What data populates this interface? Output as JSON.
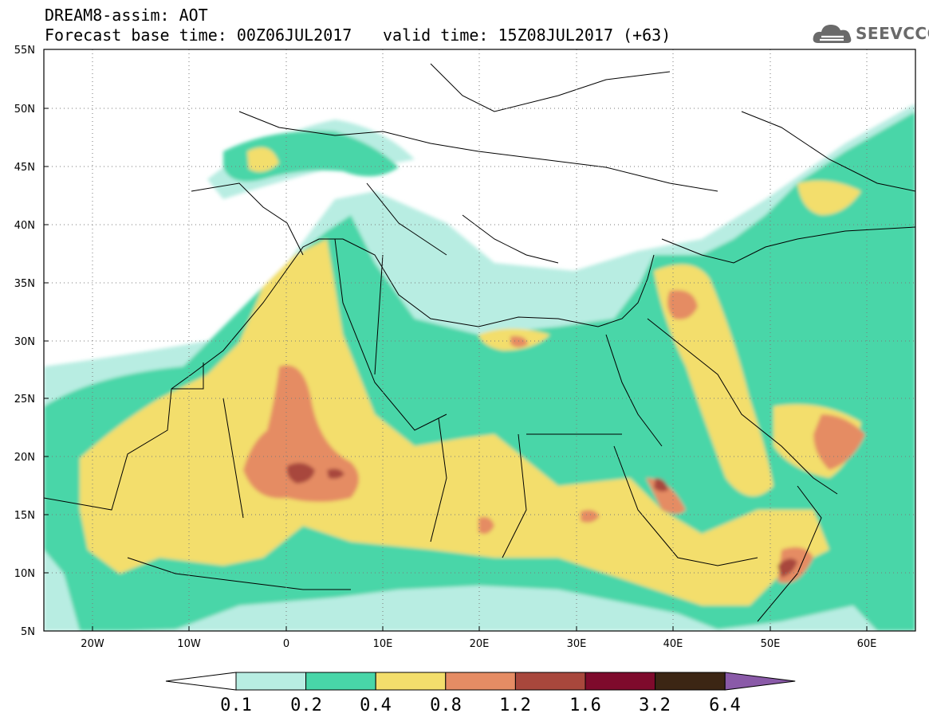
{
  "header": {
    "model_line": "DREAM8-assim: AOT",
    "base_time": "Forecast base time: 00Z06JUL2017",
    "valid_time": "valid time: 15Z08JUL2017 (+63)"
  },
  "logo": {
    "text": "SEEVCCC",
    "icon": "cloud-logo-icon",
    "color": "#6a6a6a"
  },
  "map": {
    "lat_labels": [
      "55N",
      "50N",
      "45N",
      "40N",
      "35N",
      "30N",
      "25N",
      "20N",
      "15N",
      "10N",
      "5N"
    ],
    "lon_labels": [
      "20W",
      "10W",
      "0",
      "10E",
      "20E",
      "30E",
      "40E",
      "50E",
      "60E"
    ],
    "lat_range": [
      5,
      55
    ],
    "lon_range": [
      -25,
      65
    ],
    "grid": "dotted"
  },
  "colorbar": {
    "labels": [
      "0.1",
      "0.2",
      "0.4",
      "0.8",
      "1.2",
      "1.6",
      "3.2",
      "6.4"
    ],
    "colors": [
      "#ffffff",
      "#b8ede2",
      "#48d6a8",
      "#f3de6c",
      "#e58c64",
      "#a8473c",
      "#7e0a2c",
      "#3c2614",
      "#8a5aa8"
    ]
  }
}
